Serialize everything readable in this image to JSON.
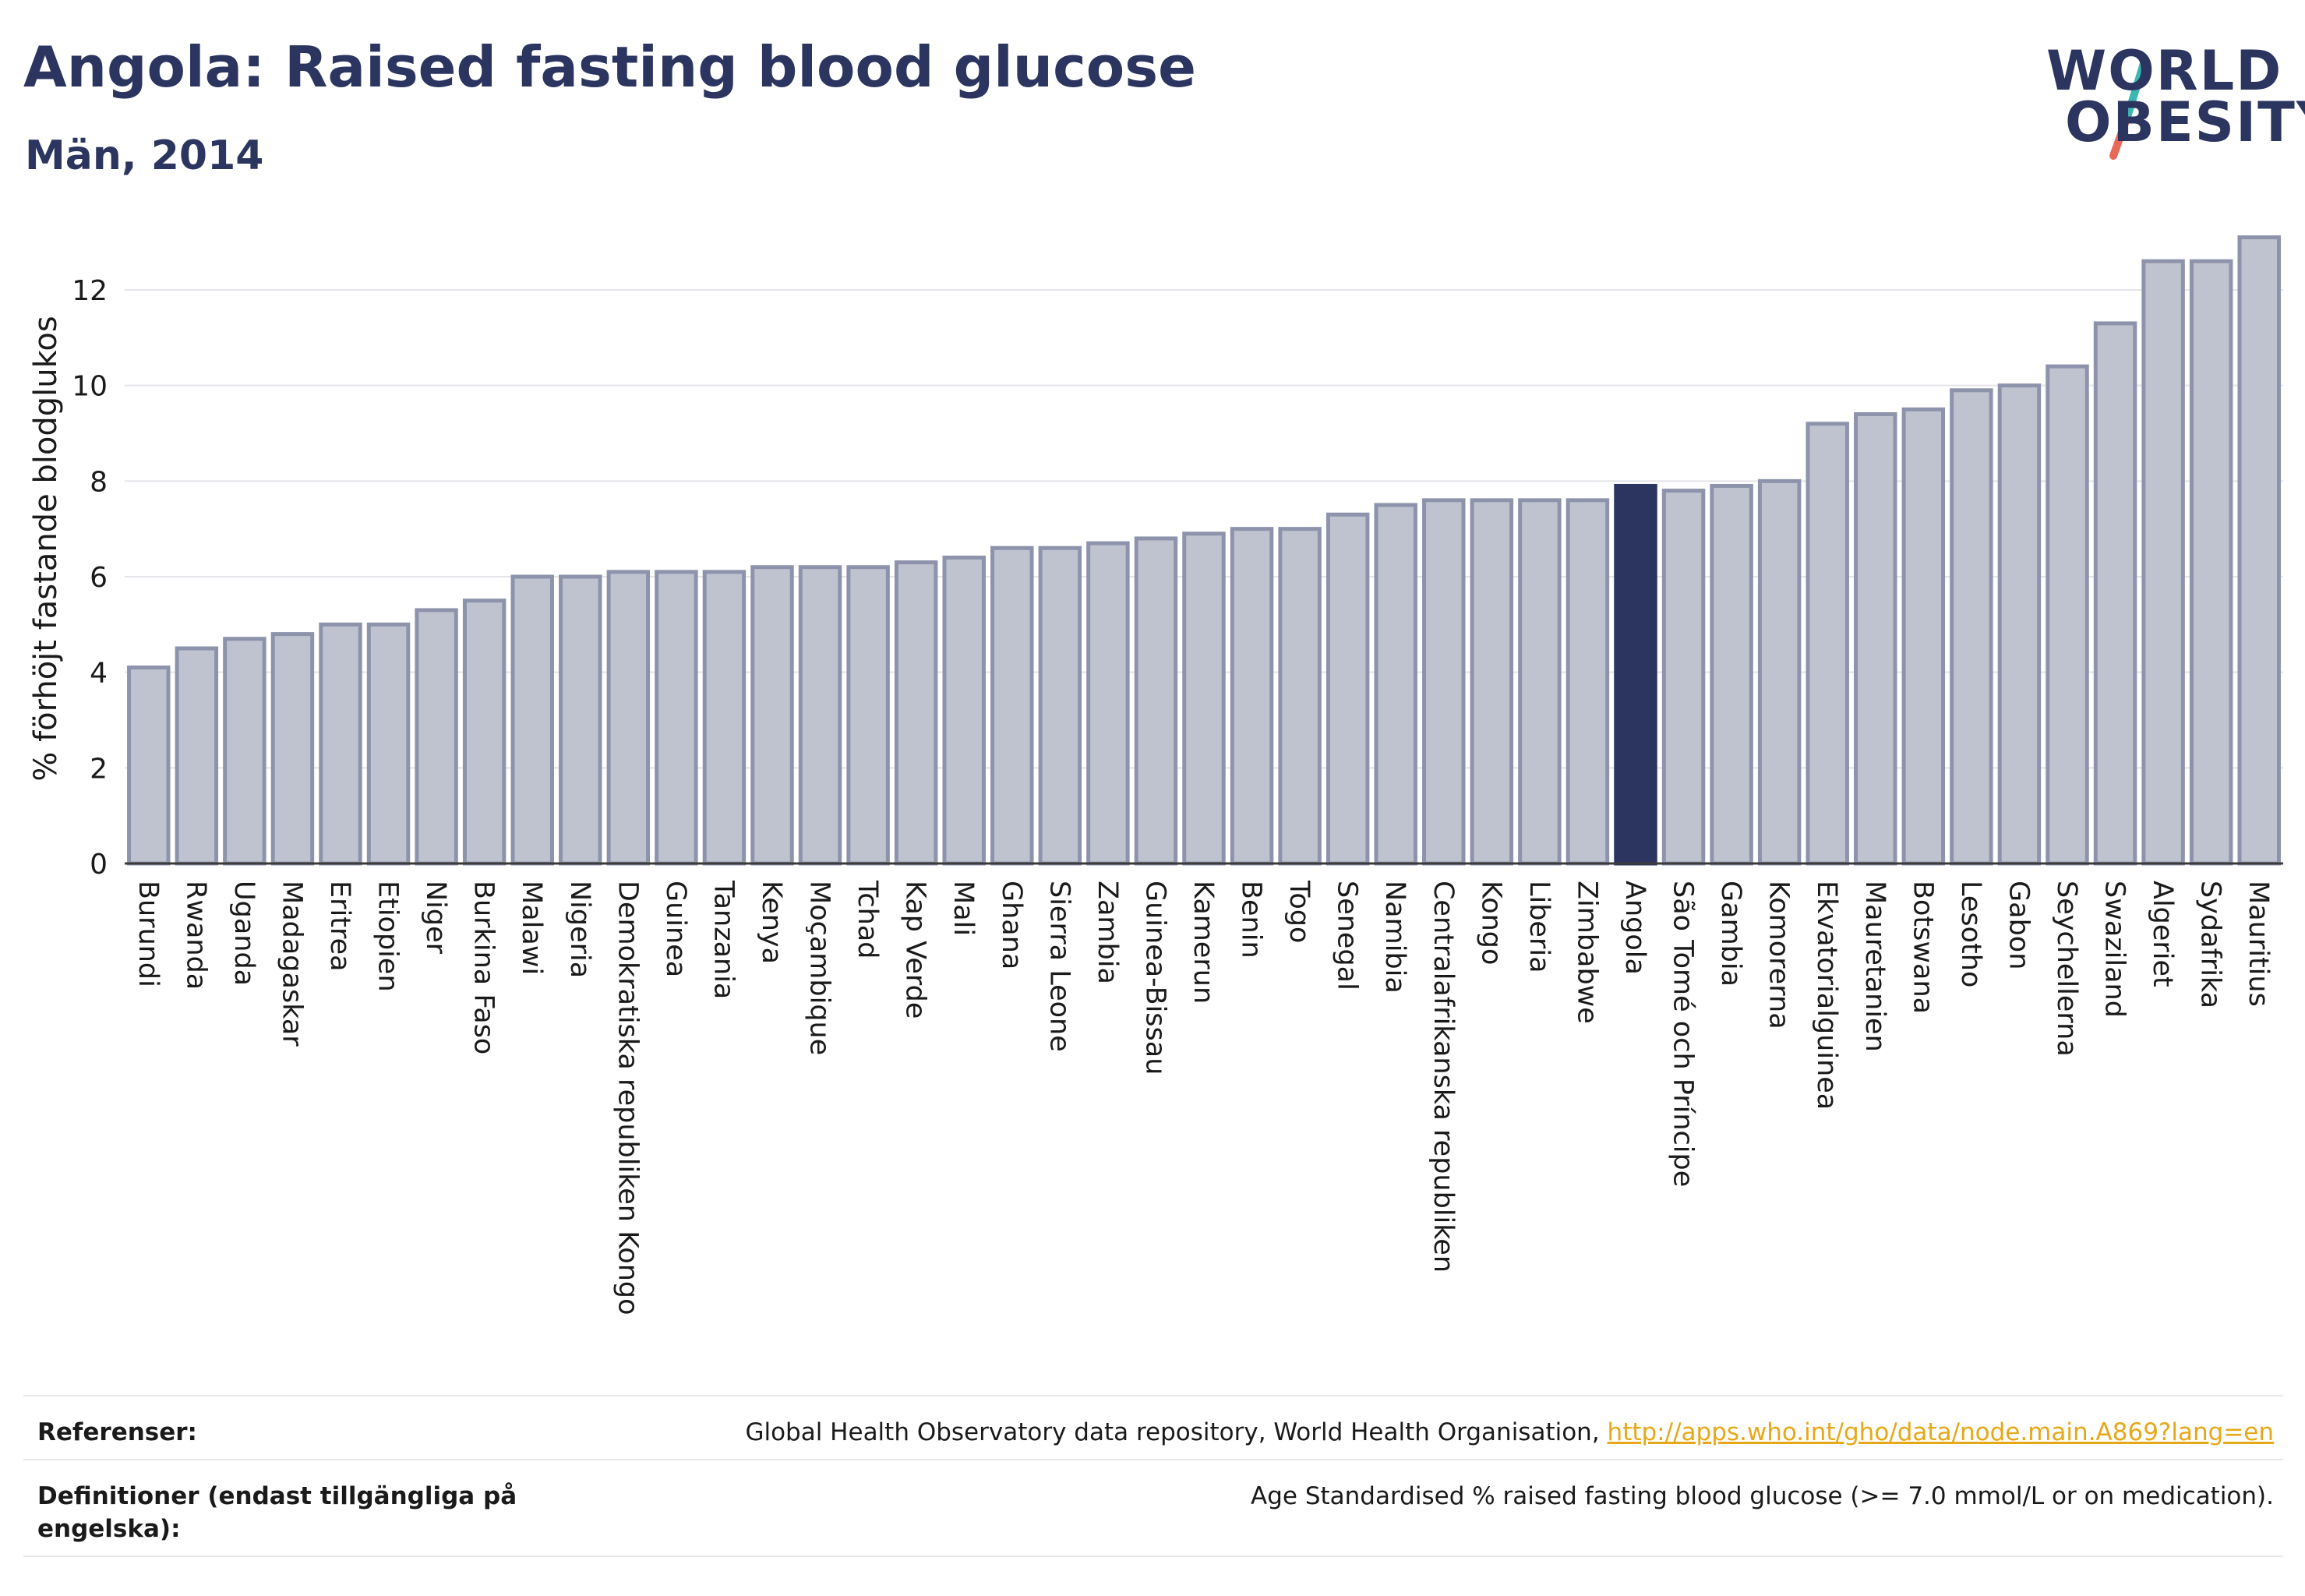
{
  "header": {
    "title": "Angola: Raised fasting blood glucose",
    "subtitle": "Män, 2014"
  },
  "logo": {
    "line1": "WORLD",
    "line2": "OBESITY"
  },
  "chart_data": {
    "type": "bar",
    "ylabel": "% förhöjt fastande blodglukos",
    "xlabel": "",
    "ylim": [
      0,
      13.5
    ],
    "yticks": [
      0,
      2,
      4,
      6,
      8,
      10,
      12
    ],
    "grid": true,
    "highlight": "Angola",
    "colors": {
      "bar": "#bfc3d0",
      "bar_edge": "#8d93ab",
      "highlight": "#2c3560"
    },
    "categories": [
      "Burundi",
      "Rwanda",
      "Uganda",
      "Madagaskar",
      "Eritrea",
      "Etiopien",
      "Niger",
      "Burkina Faso",
      "Malawi",
      "Nigeria",
      "Demokratiska republiken Kongo",
      "Guinea",
      "Tanzania",
      "Kenya",
      "Moçambique",
      "Tchad",
      "Kap Verde",
      "Mali",
      "Ghana",
      "Sierra Leone",
      "Zambia",
      "Guinea-Bissau",
      "Kamerun",
      "Benin",
      "Togo",
      "Senegal",
      "Namibia",
      "Centralafrikanska republiken",
      "Kongo",
      "Liberia",
      "Zimbabwe",
      "Angola",
      "São Tomé och Príncipe",
      "Gambia",
      "Komorerna",
      "Ekvatorialguinea",
      "Mauretanien",
      "Botswana",
      "Lesotho",
      "Gabon",
      "Seychellerna",
      "Swaziland",
      "Algeriet",
      "Sydafrika",
      "Mauritius"
    ],
    "values": [
      4.1,
      4.5,
      4.7,
      4.8,
      5.0,
      5.0,
      5.3,
      5.5,
      6.0,
      6.0,
      6.1,
      6.1,
      6.1,
      6.2,
      6.2,
      6.2,
      6.3,
      6.4,
      6.6,
      6.6,
      6.7,
      6.8,
      6.9,
      7.0,
      7.0,
      7.3,
      7.5,
      7.6,
      7.6,
      7.6,
      7.6,
      7.9,
      7.8,
      7.9,
      8.0,
      9.2,
      9.4,
      9.5,
      9.9,
      10.0,
      10.4,
      11.3,
      12.6,
      12.6,
      13.1
    ]
  },
  "footer": {
    "references_label": "Referenser:",
    "references_text": "Global Health Observatory data repository, World Health Organisation, ",
    "references_link": "http://apps.who.int/gho/data/node.main.A869?lang=en",
    "definitions_label": "Definitioner (endast tillgängliga på engelska):",
    "definitions_text": "Age Standardised % raised fasting blood glucose (>= 7.0 mmol/L or on medication)."
  }
}
